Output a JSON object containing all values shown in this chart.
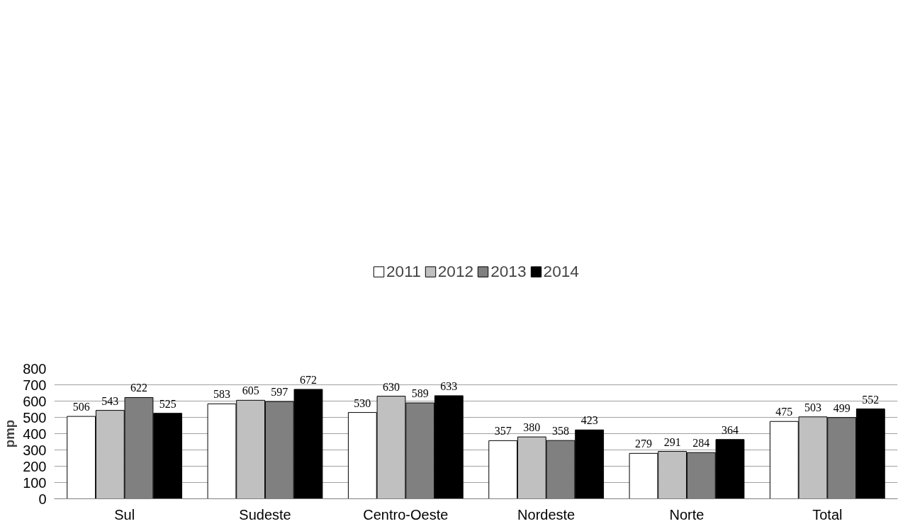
{
  "chart_data": {
    "type": "bar",
    "ylabel": "pmp",
    "categories": [
      "Sul",
      "Sudeste",
      "Centro-Oeste",
      "Nordeste",
      "Norte",
      "Total"
    ],
    "series": [
      {
        "name": "2011",
        "color": "#ffffff",
        "values": [
          506,
          583,
          530,
          357,
          279,
          475
        ]
      },
      {
        "name": "2012",
        "color": "#c0c0c0",
        "values": [
          543,
          605,
          630,
          380,
          291,
          503
        ]
      },
      {
        "name": "2013",
        "color": "#808080",
        "values": [
          622,
          597,
          589,
          358,
          284,
          499
        ]
      },
      {
        "name": "2014",
        "color": "#000000",
        "values": [
          525,
          672,
          633,
          423,
          364,
          552
        ]
      }
    ],
    "ylim": [
      0,
      800
    ],
    "yticks": [
      0,
      100,
      200,
      300,
      400,
      500,
      600,
      700,
      800
    ],
    "grid": "y",
    "legend": "top",
    "data_labels": true
  }
}
